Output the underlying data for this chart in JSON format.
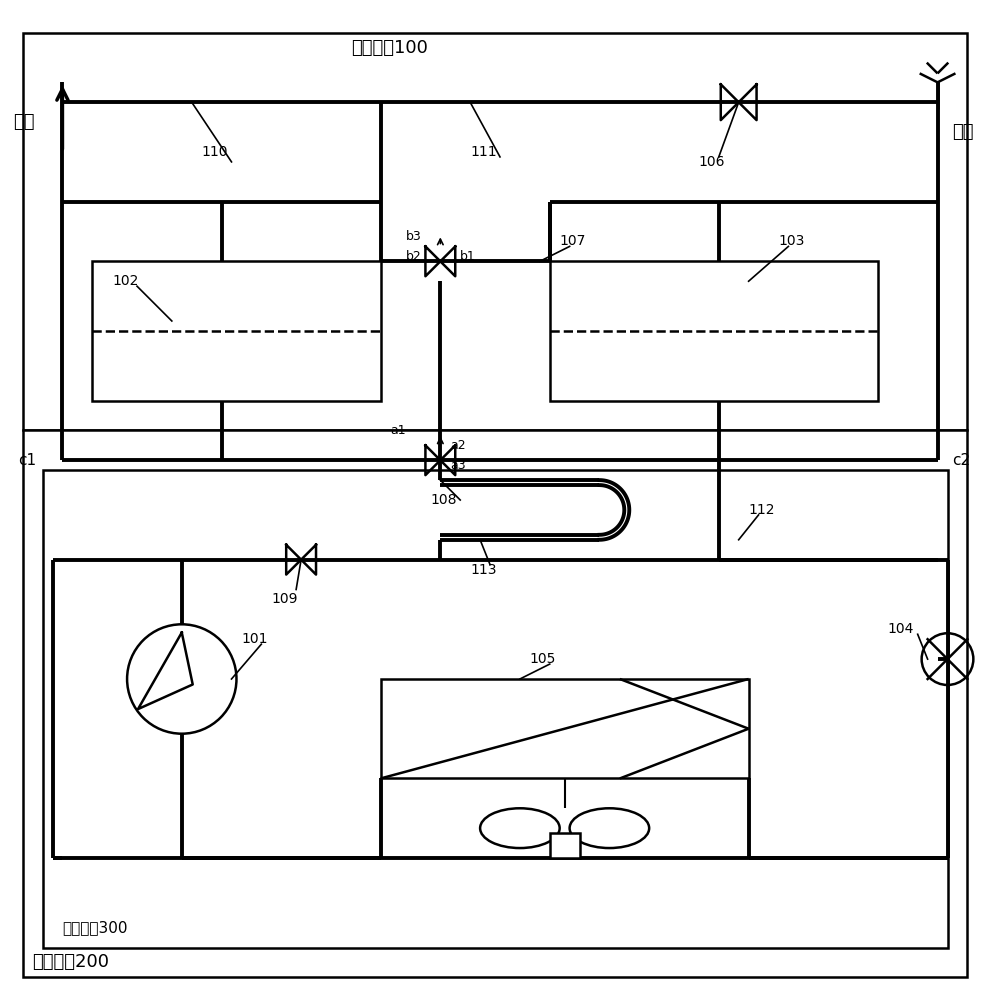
{
  "title_hot_water": "热水系统100",
  "title_heat_pump": "热泵系统200",
  "title_compress": "压缩装置300",
  "label_hot_water": "热水",
  "label_cold_water": "冷水",
  "label_c1": "c1",
  "label_c2": "c2",
  "bg_color": "#ffffff",
  "line_color": "#000000"
}
